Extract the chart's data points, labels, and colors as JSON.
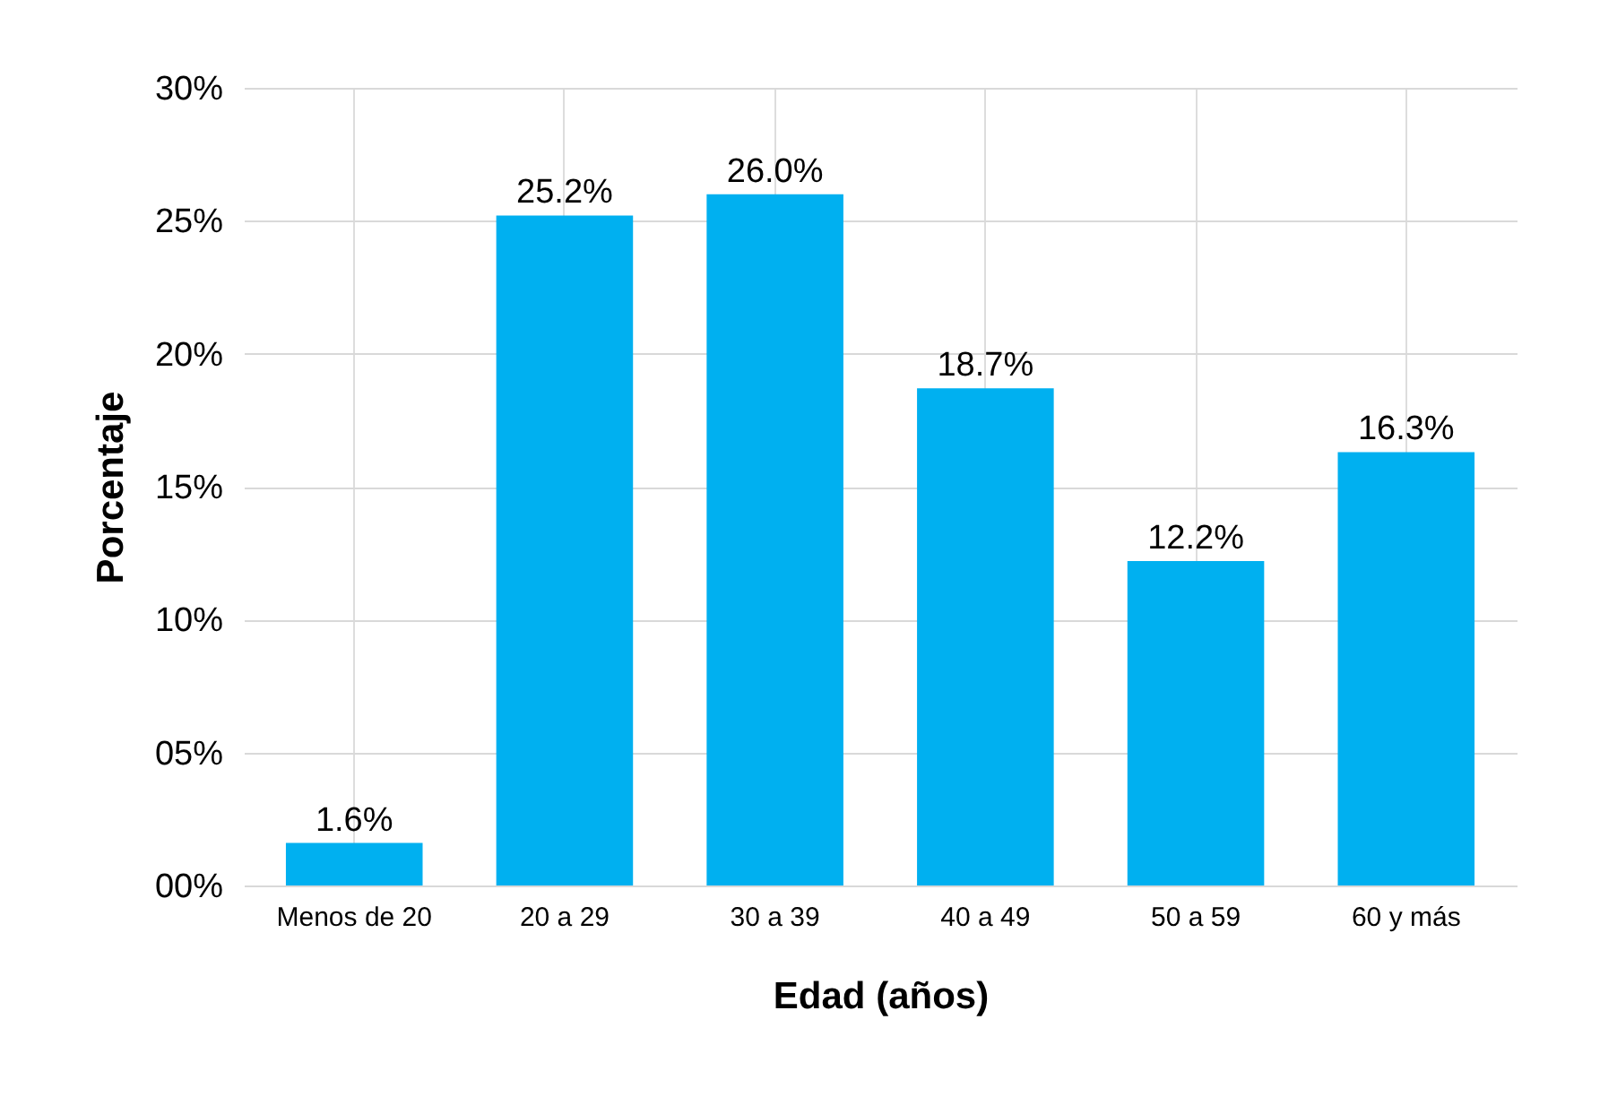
{
  "chart_data": {
    "type": "bar",
    "xlabel": "Edad (años)",
    "ylabel": "Porcentaje",
    "categories": [
      "Menos de 20",
      "20 a 29",
      "30 a 39",
      "40 a 49",
      "50 a 59",
      "60 y más"
    ],
    "values": [
      1.6,
      25.2,
      26.0,
      18.7,
      12.2,
      16.3
    ],
    "value_labels": [
      "1.6%",
      "25.2%",
      "26.0%",
      "18.7%",
      "12.2%",
      "16.3%"
    ],
    "color": "#00b0f0",
    "ylim": [
      0,
      30
    ],
    "yticks": [
      {
        "value": 0,
        "label": "00%"
      },
      {
        "value": 5,
        "label": "05%"
      },
      {
        "value": 10,
        "label": "10%"
      },
      {
        "value": 15,
        "label": "15%"
      },
      {
        "value": 20,
        "label": "20%"
      },
      {
        "value": 25,
        "label": "25%"
      },
      {
        "value": 30,
        "label": "30%"
      }
    ],
    "grid": true
  }
}
